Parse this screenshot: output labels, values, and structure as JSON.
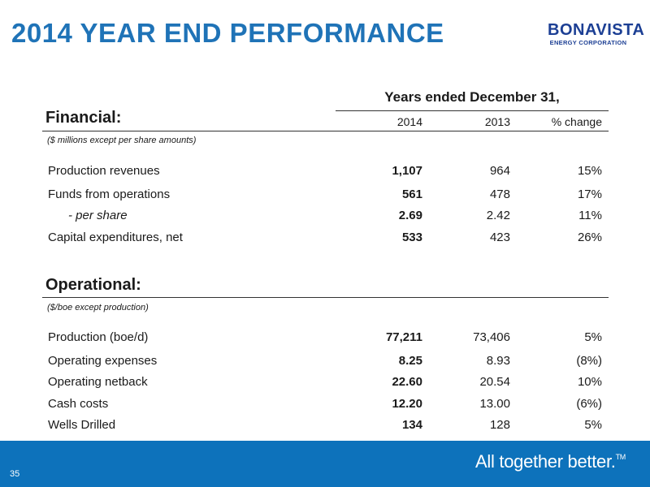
{
  "title": "2014 YEAR END PERFORMANCE",
  "logo": {
    "main": "BONAVISTA",
    "sub": "ENERGY CORPORATION"
  },
  "table": {
    "years_header": "Years ended December 31,",
    "columns": [
      "2014",
      "2013",
      "% change"
    ]
  },
  "financial": {
    "title": "Financial:",
    "note": "($ millions except per share amounts)",
    "rows": [
      {
        "label": "Production revenues",
        "v2014": "1,107",
        "v2013": "964",
        "change": "15%"
      },
      {
        "label": "Funds from operations",
        "v2014": "561",
        "v2013": "478",
        "change": "17%"
      },
      {
        "label": "- per share",
        "v2014": "2.69",
        "v2013": "2.42",
        "change": "11%"
      },
      {
        "label": "Capital expenditures, net",
        "v2014": "533",
        "v2013": "423",
        "change": "26%"
      }
    ]
  },
  "operational": {
    "title": "Operational:",
    "note": "($/boe except production)",
    "rows": [
      {
        "label": "Production (boe/d)",
        "v2014": "77,211",
        "v2013": "73,406",
        "change": "5%"
      },
      {
        "label": "Operating expenses",
        "v2014": "8.25",
        "v2013": "8.93",
        "change": "(8%)"
      },
      {
        "label": "Operating netback",
        "v2014": "22.60",
        "v2013": "20.54",
        "change": "10%"
      },
      {
        "label": "Cash costs",
        "v2014": "12.20",
        "v2013": "13.00",
        "change": "(6%)"
      },
      {
        "label": "Wells Drilled",
        "v2014": "134",
        "v2013": "128",
        "change": "5%"
      }
    ]
  },
  "footer": {
    "page_number": "35",
    "tagline": "All together better.",
    "trademark": "TM"
  },
  "colors": {
    "title": "#1f73b7",
    "footer": "#0d72bb",
    "logo": "#1c3f94"
  }
}
